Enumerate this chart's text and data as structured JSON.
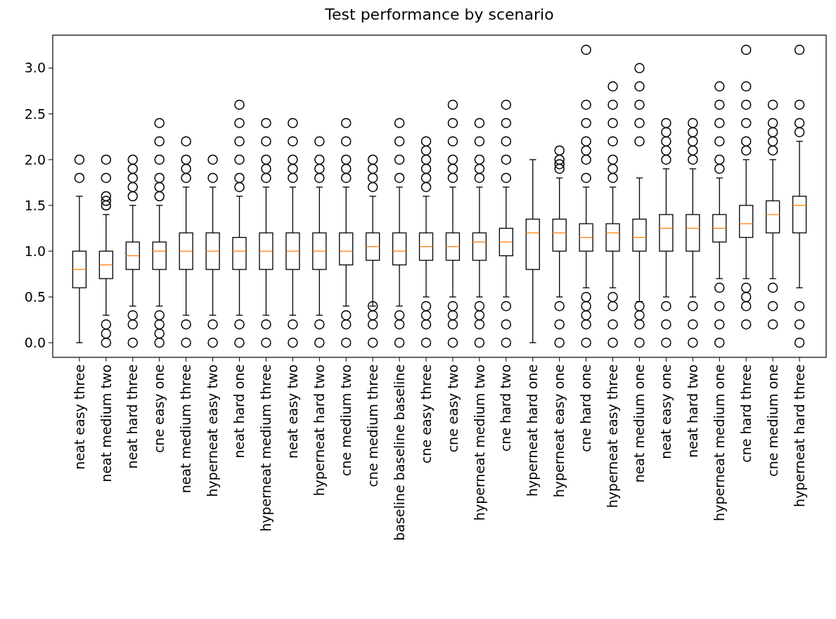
{
  "chart_data": {
    "type": "box",
    "title": "Test performance by scenario",
    "categories": [
      "neat easy three",
      "neat medium two",
      "neat hard three",
      "cne easy one",
      "neat medium three",
      "hyperneat easy two",
      "neat hard one",
      "hyperneat medium three",
      "neat easy two",
      "hyperneat hard two",
      "cne medium two",
      "cne medium three",
      "baseline baseline baseline",
      "cne easy three",
      "cne easy two",
      "hyperneat medium two",
      "cne hard two",
      "hyperneat hard one",
      "hyperneat easy one",
      "cne hard one",
      "hyperneat easy three",
      "neat medium one",
      "neat easy one",
      "neat hard two",
      "hyperneat medium one",
      "cne hard three",
      "cne medium one",
      "hyperneat hard three"
    ],
    "boxes": [
      {
        "low": 0,
        "q1": 0.6,
        "median": 0.8,
        "q3": 1.0,
        "high": 1.6,
        "outliers": [
          1.8,
          2.0
        ]
      },
      {
        "low": 0.3,
        "q1": 0.7,
        "median": 0.85,
        "q3": 1.0,
        "high": 1.4,
        "outliers": [
          0,
          0.1,
          0.2,
          1.5,
          1.55,
          1.6,
          1.8,
          2.0
        ]
      },
      {
        "low": 0.4,
        "q1": 0.8,
        "median": 0.95,
        "q3": 1.1,
        "high": 1.5,
        "outliers": [
          0,
          0.2,
          0.3,
          1.6,
          1.7,
          1.8,
          1.9,
          2.0
        ]
      },
      {
        "low": 0.4,
        "q1": 0.8,
        "median": 1.0,
        "q3": 1.1,
        "high": 1.5,
        "outliers": [
          0,
          0.1,
          0.2,
          0.3,
          1.6,
          1.7,
          1.8,
          2.0,
          2.2,
          2.4
        ]
      },
      {
        "low": 0.3,
        "q1": 0.8,
        "median": 1.0,
        "q3": 1.2,
        "high": 1.7,
        "outliers": [
          0,
          0.2,
          1.8,
          1.9,
          2.0,
          2.2
        ]
      },
      {
        "low": 0.3,
        "q1": 0.8,
        "median": 1.0,
        "q3": 1.2,
        "high": 1.7,
        "outliers": [
          0,
          0.2,
          1.8,
          2.0
        ]
      },
      {
        "low": 0.3,
        "q1": 0.8,
        "median": 1.0,
        "q3": 1.15,
        "high": 1.6,
        "outliers": [
          0,
          0.2,
          1.7,
          1.8,
          2.0,
          2.2,
          2.4,
          2.6
        ]
      },
      {
        "low": 0.3,
        "q1": 0.8,
        "median": 1.0,
        "q3": 1.2,
        "high": 1.7,
        "outliers": [
          0,
          0.2,
          1.8,
          1.9,
          2.0,
          2.2,
          2.4
        ]
      },
      {
        "low": 0.3,
        "q1": 0.8,
        "median": 1.0,
        "q3": 1.2,
        "high": 1.7,
        "outliers": [
          0,
          0.2,
          1.8,
          1.9,
          2.0,
          2.2,
          2.4
        ]
      },
      {
        "low": 0.3,
        "q1": 0.8,
        "median": 1.0,
        "q3": 1.2,
        "high": 1.7,
        "outliers": [
          0,
          0.2,
          1.8,
          1.9,
          2.0,
          2.2
        ]
      },
      {
        "low": 0.4,
        "q1": 0.85,
        "median": 1.0,
        "q3": 1.2,
        "high": 1.7,
        "outliers": [
          0,
          0.2,
          0.3,
          1.8,
          1.9,
          2.0,
          2.2,
          2.4
        ]
      },
      {
        "low": 0.4,
        "q1": 0.9,
        "median": 1.05,
        "q3": 1.2,
        "high": 1.6,
        "outliers": [
          0,
          0.2,
          0.3,
          0.4,
          1.7,
          1.8,
          1.9,
          2.0
        ]
      },
      {
        "low": 0.4,
        "q1": 0.85,
        "median": 1.0,
        "q3": 1.2,
        "high": 1.7,
        "outliers": [
          0,
          0.2,
          0.3,
          1.8,
          2.0,
          2.2,
          2.4
        ]
      },
      {
        "low": 0.5,
        "q1": 0.9,
        "median": 1.05,
        "q3": 1.2,
        "high": 1.6,
        "outliers": [
          0,
          0.2,
          0.3,
          0.4,
          1.7,
          1.8,
          1.9,
          2.0,
          2.1,
          2.2
        ]
      },
      {
        "low": 0.5,
        "q1": 0.9,
        "median": 1.05,
        "q3": 1.2,
        "high": 1.7,
        "outliers": [
          0,
          0.2,
          0.3,
          0.4,
          1.8,
          1.9,
          2.0,
          2.2,
          2.4,
          2.6
        ]
      },
      {
        "low": 0.5,
        "q1": 0.9,
        "median": 1.1,
        "q3": 1.2,
        "high": 1.7,
        "outliers": [
          0,
          0.2,
          0.3,
          0.4,
          1.8,
          1.9,
          2.0,
          2.2,
          2.4
        ]
      },
      {
        "low": 0.5,
        "q1": 0.95,
        "median": 1.1,
        "q3": 1.25,
        "high": 1.7,
        "outliers": [
          0,
          0.2,
          0.4,
          1.8,
          2.0,
          2.2,
          2.4,
          2.6
        ]
      },
      {
        "low": 0,
        "q1": 0.8,
        "median": 1.2,
        "q3": 1.35,
        "high": 2.0
      },
      {
        "low": 0.5,
        "q1": 1.0,
        "median": 1.2,
        "q3": 1.35,
        "high": 1.8,
        "outliers": [
          0,
          0.2,
          0.4,
          1.9,
          1.95,
          2.0,
          2.1
        ]
      },
      {
        "low": 0.6,
        "q1": 1.0,
        "median": 1.15,
        "q3": 1.3,
        "high": 1.7,
        "outliers": [
          0,
          0.2,
          0.3,
          0.4,
          0.5,
          1.8,
          2.0,
          2.1,
          2.2,
          2.4,
          2.6,
          3.2
        ]
      },
      {
        "low": 0.6,
        "q1": 1.0,
        "median": 1.2,
        "q3": 1.3,
        "high": 1.7,
        "outliers": [
          0,
          0.2,
          0.4,
          0.5,
          1.8,
          1.9,
          2.0,
          2.2,
          2.4,
          2.6,
          2.8
        ]
      },
      {
        "low": 0.45,
        "q1": 1.0,
        "median": 1.15,
        "q3": 1.35,
        "high": 1.8,
        "outliers": [
          0,
          0.2,
          0.3,
          0.4,
          2.2,
          2.4,
          2.6,
          2.8,
          3.0
        ]
      },
      {
        "low": 0.5,
        "q1": 1.0,
        "median": 1.25,
        "q3": 1.4,
        "high": 1.9,
        "outliers": [
          0,
          0.2,
          0.4,
          2.0,
          2.1,
          2.2,
          2.3,
          2.4
        ]
      },
      {
        "low": 0.5,
        "q1": 1.0,
        "median": 1.25,
        "q3": 1.4,
        "high": 1.9,
        "outliers": [
          0,
          0.2,
          0.4,
          2.0,
          2.1,
          2.2,
          2.3,
          2.4
        ]
      },
      {
        "low": 0.7,
        "q1": 1.1,
        "median": 1.25,
        "q3": 1.4,
        "high": 1.8,
        "outliers": [
          0,
          0.2,
          0.4,
          0.6,
          1.9,
          2.0,
          2.2,
          2.4,
          2.6,
          2.8
        ]
      },
      {
        "low": 0.7,
        "q1": 1.15,
        "median": 1.3,
        "q3": 1.5,
        "high": 2.0,
        "outliers": [
          0.2,
          0.4,
          0.5,
          0.6,
          2.1,
          2.2,
          2.4,
          2.6,
          2.8,
          3.2
        ]
      },
      {
        "low": 0.7,
        "q1": 1.2,
        "median": 1.4,
        "q3": 1.55,
        "high": 2.0,
        "outliers": [
          0.2,
          0.4,
          0.6,
          2.1,
          2.2,
          2.3,
          2.4,
          2.6
        ]
      },
      {
        "low": 0.6,
        "q1": 1.2,
        "median": 1.5,
        "q3": 1.6,
        "high": 2.2,
        "outliers": [
          0,
          0.2,
          0.4,
          2.3,
          2.4,
          2.6,
          3.2
        ]
      }
    ],
    "ylim": [
      -0.16,
      3.36
    ],
    "yticks": [
      {
        "value": 0,
        "label": "0.0"
      },
      {
        "value": 0.5,
        "label": "0.5"
      },
      {
        "value": 1,
        "label": "1.0"
      },
      {
        "value": 1.5,
        "label": "1.5"
      },
      {
        "value": 2,
        "label": "2.0"
      },
      {
        "value": 2.5,
        "label": "2.5"
      },
      {
        "value": 3,
        "label": "3.0"
      }
    ],
    "marker": "circle"
  }
}
